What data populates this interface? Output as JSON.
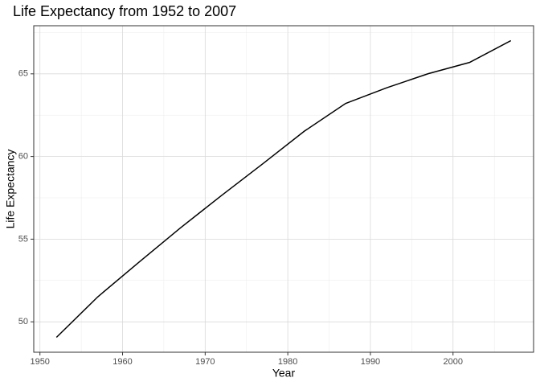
{
  "chart_data": {
    "type": "line",
    "title": "Life Expectancy from 1952 to 2007",
    "x_label": "Year",
    "y_label": "Life Expectancy",
    "x": [
      1952,
      1957,
      1962,
      1967,
      1972,
      1977,
      1982,
      1987,
      1992,
      1997,
      2002,
      2007
    ],
    "series": [
      {
        "name": "Life Expectancy",
        "color": "#000000",
        "values": [
          49.06,
          51.51,
          53.61,
          55.68,
          57.65,
          59.57,
          61.53,
          63.21,
          64.16,
          65.01,
          65.69,
          67.01
        ]
      }
    ],
    "xlim": [
      1949.25,
      2009.75
    ],
    "xticks": [
      1950,
      1960,
      1970,
      1980,
      1990,
      2000
    ],
    "ylim": [
      48.16,
      67.91
    ],
    "yticks": [
      50,
      55,
      60,
      65
    ],
    "grid": true
  }
}
